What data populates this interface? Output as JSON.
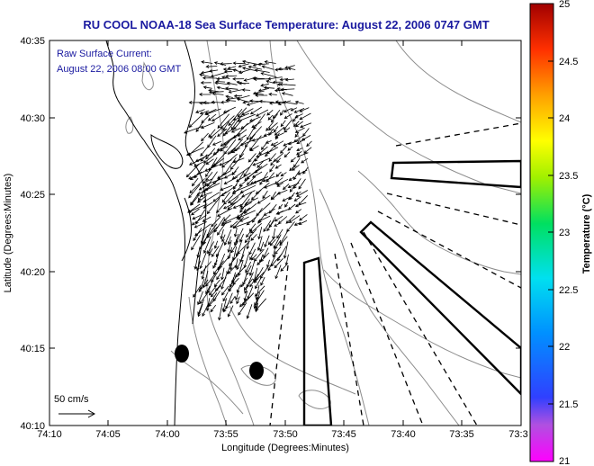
{
  "title": "RU COOL  NOAA-18  Sea Surface Temperature:  August 22, 2006 0747 GMT",
  "annotation": {
    "line1": "Raw Surface Current:",
    "line2": "August 22, 2006 08:00 GMT"
  },
  "scale_label": "50 cm/s",
  "axes": {
    "xlabel": "Longitude (Degrees:Minutes)",
    "ylabel": "Latitude (Degrees:Minutes)",
    "x_ticks": [
      "74:10",
      "74:05",
      "74:00",
      "73:55",
      "73:50",
      "73:45",
      "73:40",
      "73:35",
      "73:3"
    ],
    "y_ticks": [
      "40:35",
      "40:30",
      "40:25",
      "40:20",
      "40:15",
      "40:10"
    ]
  },
  "colorbar": {
    "label": "Temperature (°C)",
    "ticks": [
      "25",
      "24.5",
      "24",
      "23.5",
      "23",
      "22.5",
      "22",
      "21.5",
      "21"
    ],
    "range": [
      21,
      25
    ]
  },
  "colors": {
    "title": "#1a1aa0",
    "contour": "#8c8c8c"
  }
}
